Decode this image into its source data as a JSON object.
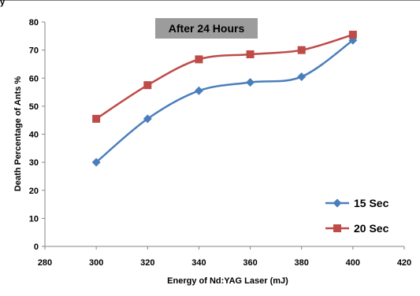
{
  "chart_data": {
    "type": "line",
    "title": "After 24 Hours",
    "xlabel": "Energy of Nd:YAG Laser (mJ)",
    "ylabel": "Death Percentage of Ants %",
    "xlim": [
      280,
      420
    ],
    "ylim": [
      0,
      80
    ],
    "xticks": [
      280,
      300,
      320,
      340,
      360,
      380,
      400,
      420
    ],
    "yticks": [
      0,
      10,
      20,
      30,
      40,
      50,
      60,
      70,
      80
    ],
    "grid": false,
    "legend_position": "bottom-right",
    "x": [
      300,
      320,
      340,
      360,
      380,
      400
    ],
    "series": [
      {
        "name": "15 Sec",
        "values": [
          30,
          45.5,
          55.5,
          58.5,
          60.5,
          73.5
        ],
        "color": "#4a7ebb",
        "marker": "diamond"
      },
      {
        "name": "20 Sec",
        "values": [
          45.5,
          57.5,
          66.7,
          68.5,
          70,
          75.5
        ],
        "color": "#be4b48",
        "marker": "square"
      }
    ]
  }
}
